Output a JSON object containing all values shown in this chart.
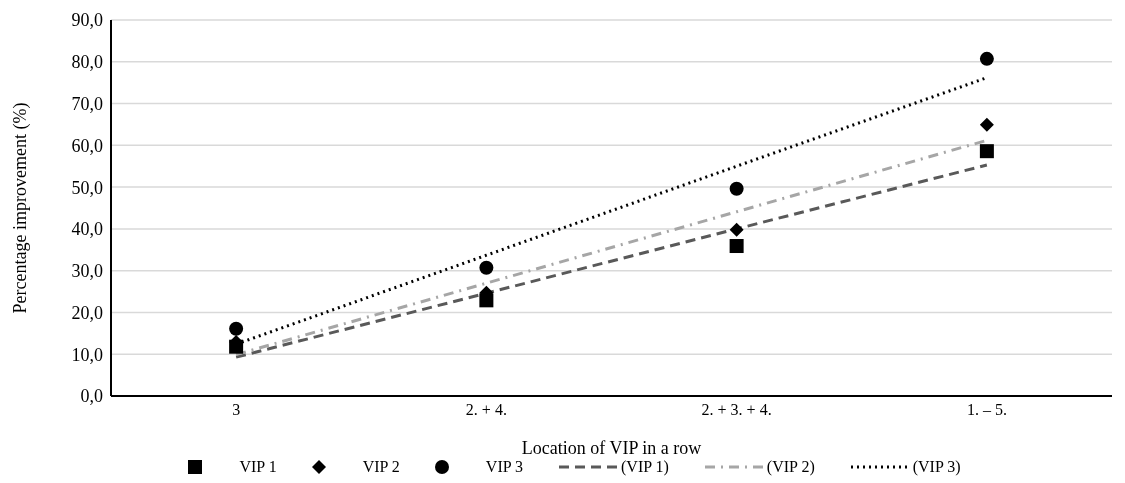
{
  "chart_data": {
    "type": "scatter",
    "xlabel": "Location of VIP in a row",
    "ylabel": "Percentage improvement (%)",
    "categories": [
      "3",
      "2. + 4.",
      "2. + 3. + 4.",
      "1. – 5."
    ],
    "ylim": [
      0,
      90
    ],
    "yticks": [
      {
        "value": 0,
        "label": "0,0"
      },
      {
        "value": 10,
        "label": "10,0"
      },
      {
        "value": 20,
        "label": "20,0"
      },
      {
        "value": 30,
        "label": "30,0"
      },
      {
        "value": 40,
        "label": "40,0"
      },
      {
        "value": 50,
        "label": "50,0"
      },
      {
        "value": 60,
        "label": "60,0"
      },
      {
        "value": 70,
        "label": "70,0"
      },
      {
        "value": 80,
        "label": "80,0"
      },
      {
        "value": 90,
        "label": "90,0"
      }
    ],
    "grid": "y",
    "legend": "bottom",
    "series": [
      {
        "name": "VIP 1",
        "type": "scatter",
        "marker": "square",
        "color": "#000000",
        "values": [
          11.8,
          22.9,
          35.9,
          58.6
        ]
      },
      {
        "name": "VIP 2",
        "type": "scatter",
        "marker": "diamond",
        "color": "#000000",
        "values": [
          12.9,
          24.7,
          39.8,
          64.9
        ]
      },
      {
        "name": "VIP 3",
        "type": "scatter",
        "marker": "circle",
        "color": "#000000",
        "values": [
          16.1,
          30.7,
          49.6,
          80.7
        ]
      },
      {
        "name": "(VIP 1)",
        "type": "line",
        "marker": "none",
        "line_style": "dashed",
        "color": "#595959",
        "values": [
          9.3,
          24.6,
          40.0,
          55.3
        ]
      },
      {
        "name": "(VIP 2)",
        "type": "line",
        "marker": "none",
        "line_style": "dashdot",
        "color": "#a6a6a6",
        "values": [
          9.9,
          27.0,
          44.1,
          61.2
        ]
      },
      {
        "name": "(VIP 3)",
        "type": "line",
        "marker": "none",
        "line_style": "dotted",
        "color": "#000000",
        "values": [
          12.4,
          33.7,
          55.0,
          76.2
        ]
      }
    ]
  }
}
